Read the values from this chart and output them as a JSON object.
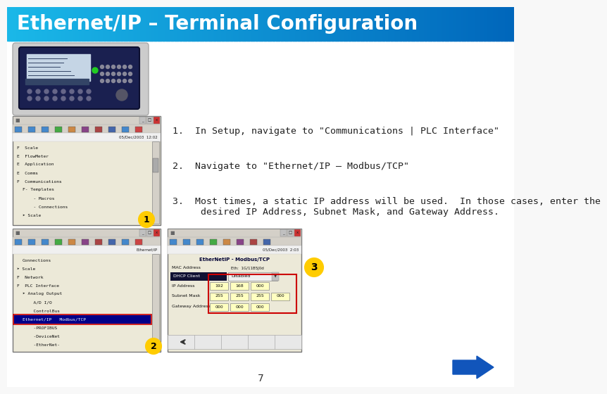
{
  "title": "Ethernet/IP – Terminal Configuration",
  "title_bg_color_left": "#1ab8e8",
  "title_bg_color_right": "#0066bb",
  "title_text_color": "#ffffff",
  "title_fontsize": 20,
  "bg_color": "#f0f0f0",
  "slide_number": "7",
  "step1": "1.  In Setup, navigate to \"Communications | PLC Interface\"",
  "step2": "2.  Navigate to \"Ethernet/IP – Modbus/TCP\"",
  "step3_line1": "3.  Most times, a static IP address will be used.  In those cases, enter the",
  "step3_line2": "     desired IP Address, Subnet Mask, and Gateway Address.",
  "text_color": "#222222",
  "text_fontsize": 9.5,
  "arrow_color": "#1166cc",
  "circle_color": "#ffcc00",
  "circle_border": "#cc6600",
  "circle_text_color": "#000000"
}
